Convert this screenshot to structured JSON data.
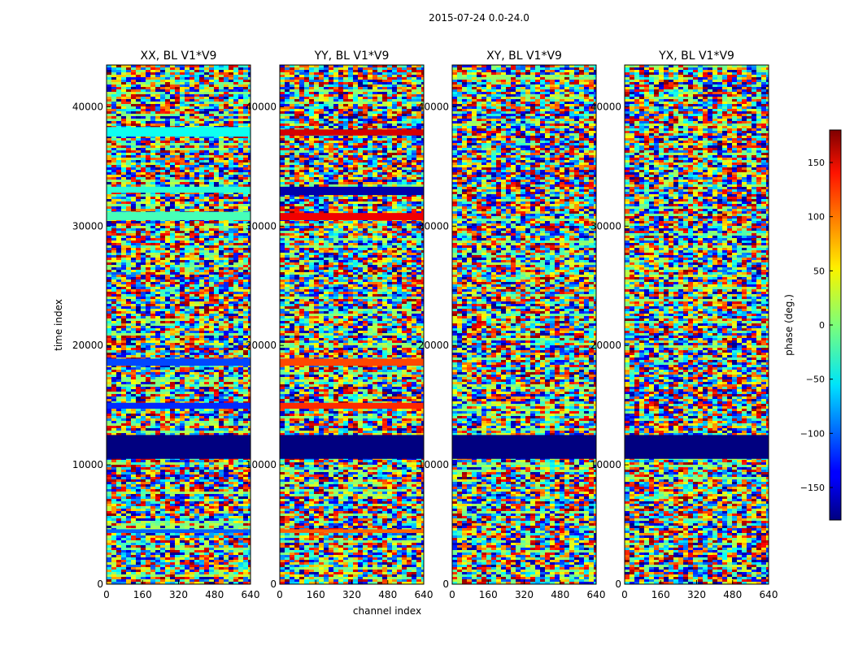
{
  "figure_title": "2015-07-24 0.0-24.0",
  "chart_data": [
    {
      "type": "heatmap",
      "title": "XX, BL V1*V9",
      "xlabel": "",
      "ylabel": "time index",
      "xlim": [
        0,
        640
      ],
      "ylim": [
        0,
        43500
      ],
      "xticks": [
        0,
        160,
        320,
        480,
        640
      ],
      "yticks": [
        0,
        10000,
        20000,
        30000,
        40000
      ],
      "value_range": [
        -180,
        180
      ],
      "colormap": "jet",
      "bands": [
        {
          "y": [
            10500,
            12500
          ],
          "phase": -180
        },
        {
          "y": [
            14700,
            15200
          ],
          "phase": -120
        },
        {
          "y": [
            18300,
            18900
          ],
          "phase": -110
        },
        {
          "y": [
            4300,
            4600
          ],
          "phase": -100
        },
        {
          "y": [
            37500,
            38300
          ],
          "phase": -40
        },
        {
          "y": [
            32800,
            33300
          ],
          "phase": -30
        },
        {
          "y": [
            30500,
            31200
          ],
          "phase": -20
        }
      ]
    },
    {
      "type": "heatmap",
      "title": "YY, BL V1*V9",
      "xlabel": "channel index",
      "ylabel": "",
      "xlim": [
        0,
        640
      ],
      "ylim": [
        0,
        43500
      ],
      "xticks": [
        0,
        160,
        320,
        480,
        640
      ],
      "yticks": [
        0,
        10000,
        20000,
        30000,
        40000
      ],
      "value_range": [
        -180,
        180
      ],
      "colormap": "jet",
      "bands": [
        {
          "y": [
            10500,
            12500
          ],
          "phase": -180
        },
        {
          "y": [
            32600,
            33300
          ],
          "phase": -165
        },
        {
          "y": [
            14700,
            15200
          ],
          "phase": 120
        },
        {
          "y": [
            18300,
            18900
          ],
          "phase": 110
        },
        {
          "y": [
            4300,
            4600
          ],
          "phase": 100
        },
        {
          "y": [
            37600,
            38100
          ],
          "phase": 150
        },
        {
          "y": [
            30500,
            31100
          ],
          "phase": 140
        }
      ]
    },
    {
      "type": "heatmap",
      "title": "XY, BL V1*V9",
      "xlabel": "",
      "ylabel": "",
      "xlim": [
        0,
        640
      ],
      "ylim": [
        0,
        43500
      ],
      "xticks": [
        0,
        160,
        320,
        480,
        640
      ],
      "yticks": [
        0,
        10000,
        20000,
        30000,
        40000
      ],
      "value_range": [
        -180,
        180
      ],
      "colormap": "jet",
      "bands": [
        {
          "y": [
            10500,
            12500
          ],
          "phase": -180
        }
      ]
    },
    {
      "type": "heatmap",
      "title": "YX, BL V1*V9",
      "xlabel": "",
      "ylabel": "",
      "xlim": [
        0,
        640
      ],
      "ylim": [
        0,
        43500
      ],
      "xticks": [
        0,
        160,
        320,
        480,
        640
      ],
      "yticks": [
        0,
        10000,
        20000,
        30000,
        40000
      ],
      "value_range": [
        -180,
        180
      ],
      "colormap": "jet",
      "bands": [
        {
          "y": [
            10500,
            12500
          ],
          "phase": -180
        }
      ]
    }
  ],
  "colorbar": {
    "label": "phase (deg.)",
    "range": [
      -180,
      180
    ],
    "ticks": [
      150,
      100,
      50,
      0,
      -50,
      -100,
      -150
    ],
    "tick_labels": [
      "150",
      "100",
      "50",
      "0",
      "−50",
      "−100",
      "−150"
    ],
    "colormap": "jet"
  }
}
